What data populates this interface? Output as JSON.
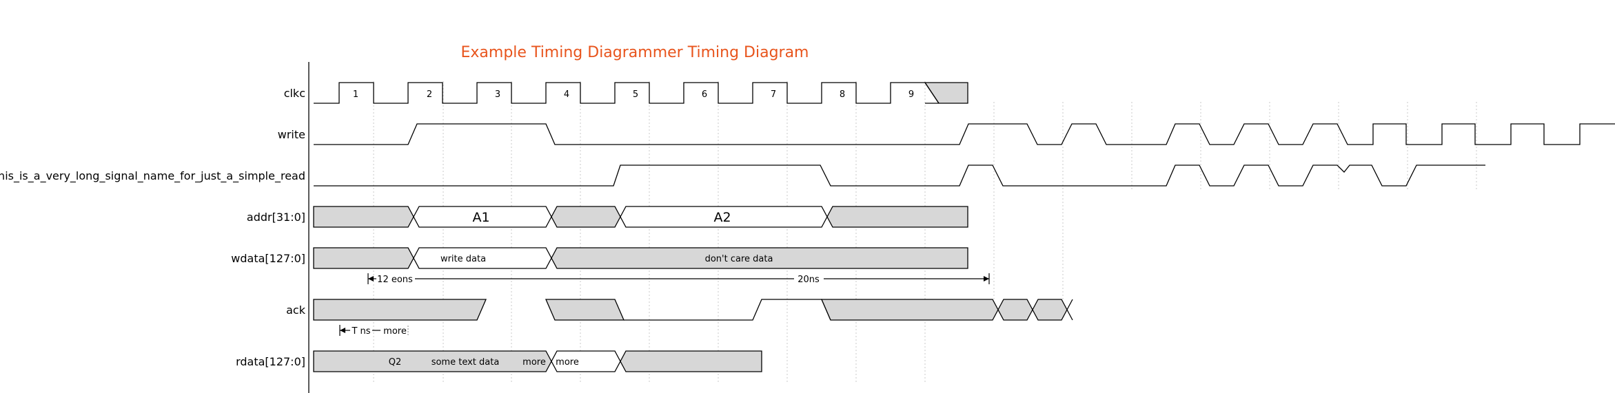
{
  "title": "Example Timing Diagrammer Timing Diagram",
  "colors": {
    "title": "#e8541c",
    "shaded": "#d7d7d7",
    "line": "#000000",
    "grid": "#c8c8c8"
  },
  "signals": [
    {
      "id": "clkc",
      "label": "clkc",
      "cycle_labels": [
        "1",
        "2",
        "3",
        "4",
        "5",
        "6",
        "7",
        "8",
        "9"
      ]
    },
    {
      "id": "write",
      "label": "write"
    },
    {
      "id": "read",
      "label": "this_is_a_very_long_signal_name_for_just_a_simple_read"
    },
    {
      "id": "addr",
      "label": "addr[31:0]",
      "segments": [
        {
          "value": "",
          "state": "dont-care"
        },
        {
          "value": "A1",
          "state": "data"
        },
        {
          "value": "",
          "state": "dont-care"
        },
        {
          "value": "A2",
          "state": "data"
        },
        {
          "value": "",
          "state": "dont-care"
        }
      ]
    },
    {
      "id": "wdata",
      "label": "wdata[127:0]",
      "segments": [
        {
          "value": "",
          "state": "dont-care"
        },
        {
          "value": "write data",
          "state": "data"
        },
        {
          "value": "don't care data",
          "state": "dont-care"
        }
      ]
    },
    {
      "id": "ack",
      "label": "ack"
    },
    {
      "id": "rdata",
      "label": "rdata[127:0]",
      "segments": [
        {
          "value": "Q2",
          "state": "dont-care"
        },
        {
          "value": "some text data",
          "state": "dont-care"
        },
        {
          "value": "more",
          "state": "dont-care"
        },
        {
          "value": "more",
          "state": "data"
        },
        {
          "value": "",
          "state": "dont-care"
        }
      ]
    }
  ],
  "annotations": {
    "wdata_measure_1": "12 eons",
    "wdata_measure_2": "20ns",
    "ack_measure_1": "T ns",
    "ack_measure_2": "more"
  }
}
